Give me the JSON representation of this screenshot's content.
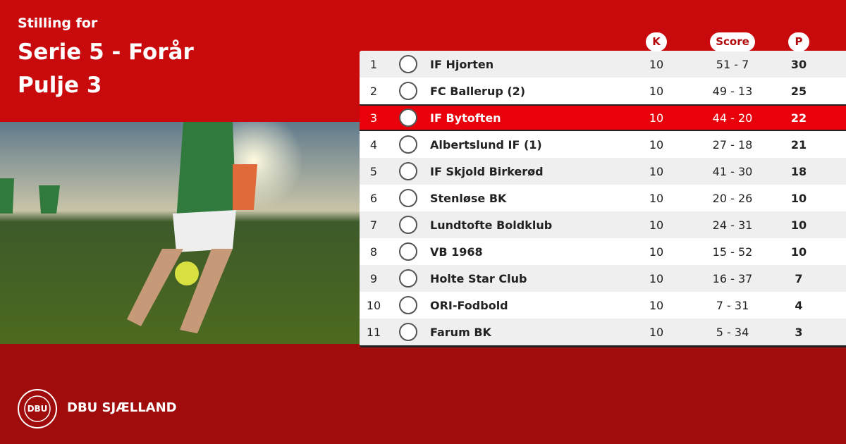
{
  "header": {
    "subtitle": "Stilling for",
    "title": "Serie 5 - Forår",
    "pool": "Pulje 3"
  },
  "table": {
    "columns": [
      "K",
      "Score",
      "P"
    ],
    "highlight_rank": 3,
    "rows": [
      [
        1,
        "IF Hjorten",
        10,
        "51 - 7",
        30
      ],
      [
        2,
        "FC Ballerup (2)",
        10,
        "49 - 13",
        25
      ],
      [
        3,
        "IF Bytoften",
        10,
        "44 - 20",
        22
      ],
      [
        4,
        "Albertslund IF (1)",
        10,
        "27 - 18",
        21
      ],
      [
        5,
        "IF Skjold Birkerød",
        10,
        "41 - 30",
        18
      ],
      [
        6,
        "Stenløse BK",
        10,
        "20 - 26",
        10
      ],
      [
        7,
        "Lundtofte Boldklub",
        10,
        "24 - 31",
        10
      ],
      [
        8,
        "VB 1968",
        10,
        "15 - 52",
        10
      ],
      [
        9,
        "Holte Star Club",
        10,
        "16 - 37",
        7
      ],
      [
        10,
        "ORI-Fodbold",
        10,
        "7 - 31",
        4
      ],
      [
        11,
        "Farum BK",
        10,
        "5 - 34",
        3
      ]
    ]
  },
  "footer": {
    "logo_text": "DBU",
    "brand": "DBU SJÆLLAND"
  }
}
